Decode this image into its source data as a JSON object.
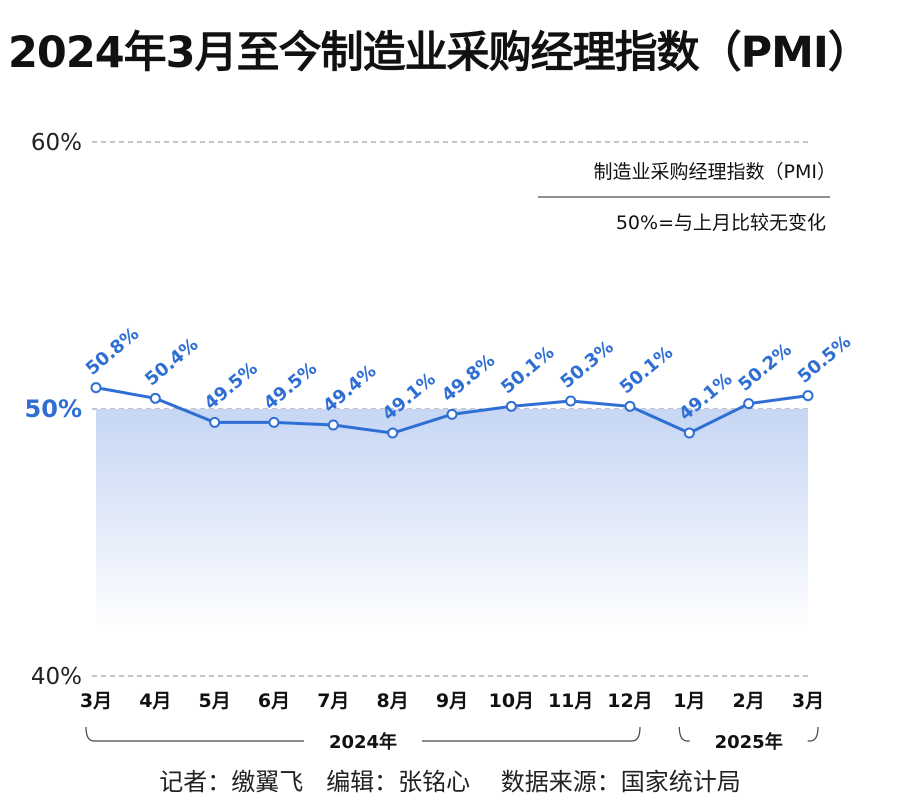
{
  "title": "2024年3月至今制造业采购经理指数（PMI）",
  "chart_data": {
    "type": "line",
    "categories": [
      "3月",
      "4月",
      "5月",
      "6月",
      "7月",
      "8月",
      "9月",
      "10月",
      "11月",
      "12月",
      "1月",
      "2月",
      "3月"
    ],
    "series": [
      {
        "name": "",
        "values": [
          50.8,
          50.4,
          49.5,
          49.5,
          49.4,
          49.1,
          49.8,
          50.1,
          50.3,
          50.1,
          49.1,
          50.2,
          50.5
        ]
      }
    ],
    "data_labels": [
      "50.8%",
      "50.4%",
      "49.5%",
      "49.5%",
      "49.4%",
      "49.1%",
      "49.8%",
      "50.1%",
      "50.3%",
      "50.1%",
      "49.1%",
      "50.2%",
      "50.5%"
    ],
    "ylim": [
      40,
      60
    ],
    "yticks": [
      40,
      50,
      60
    ],
    "ytick_labels": [
      "40%",
      "50%",
      "60%"
    ],
    "year_groups": [
      {
        "label": "2024年",
        "from": 0,
        "to": 9
      },
      {
        "label": "2025年",
        "from": 10,
        "to": 12
      }
    ],
    "legend": {
      "line1": "制造业采购经理指数（PMI）",
      "line2": "50%=与上月比较无变化"
    },
    "grid": "dashed at ticks",
    "colors": {
      "line": "#2f6fd4",
      "label": "#2f6fd4",
      "fill": "#c9d9f5",
      "baseline_label": "#2f6fd4"
    }
  },
  "footer": {
    "reporter": "记者：缴翼飞",
    "editor": "编辑：张铭心",
    "source": "数据来源：国家统计局"
  }
}
